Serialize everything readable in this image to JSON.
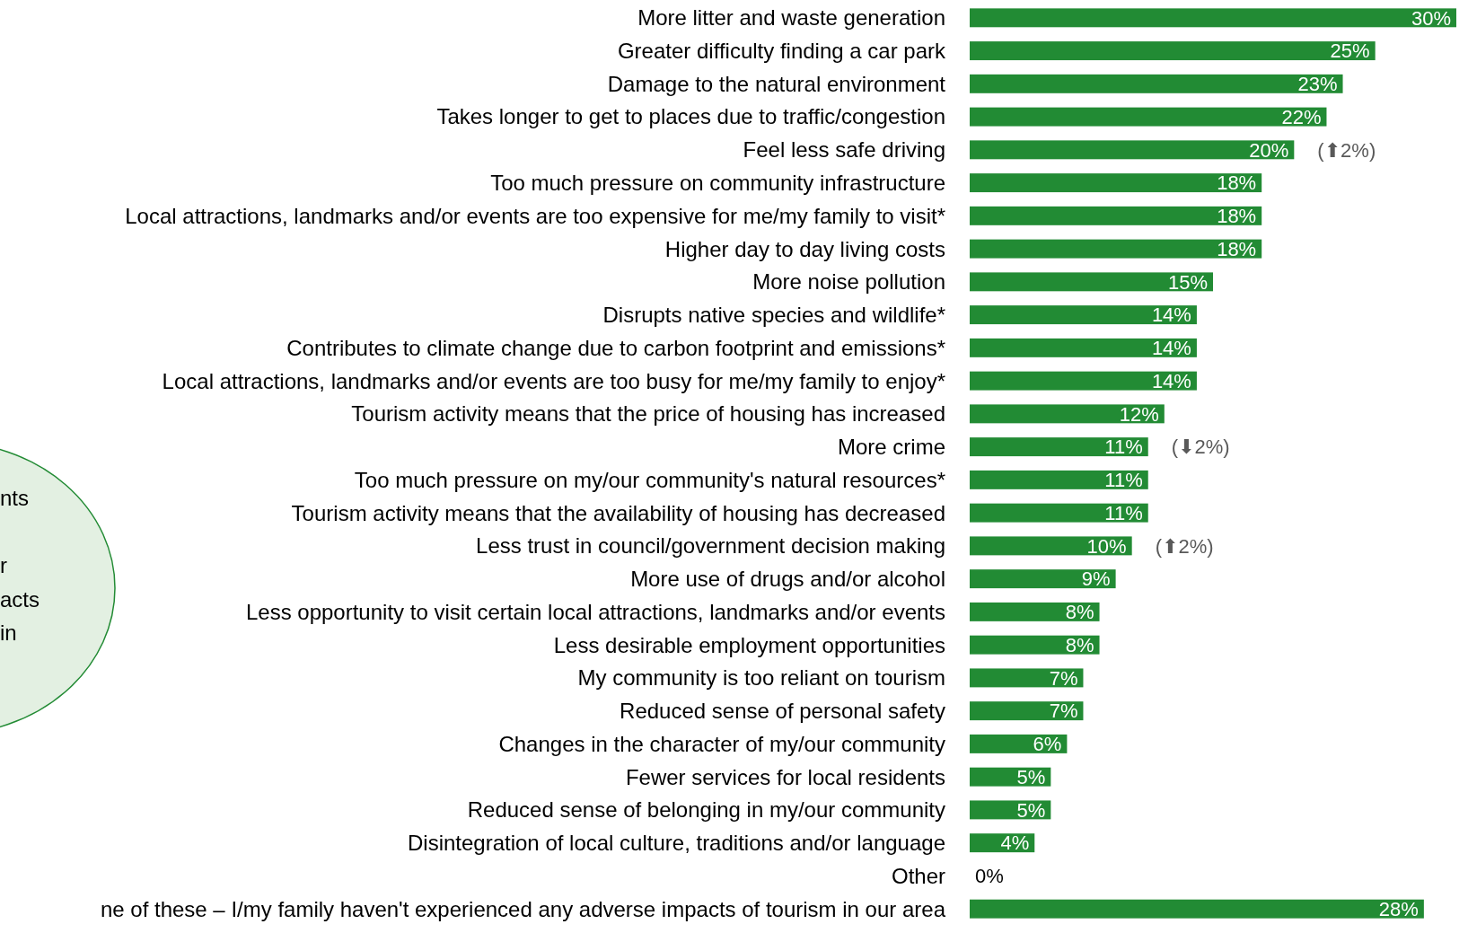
{
  "chart_data": {
    "type": "bar",
    "orientation": "horizontal",
    "color": "#228b34",
    "categories": [
      "More litter and waste generation",
      "Greater difficulty finding a car park",
      "Damage to the natural environment",
      "Takes longer to get to places due to traffic/congestion",
      "Feel less safe driving",
      "Too much pressure on community infrastructure",
      "Local attractions, landmarks and/or events are too expensive for me/my family to visit*",
      "Higher day to day living costs",
      "More noise pollution",
      "Disrupts native species and wildlife*",
      "Contributes to climate change due to carbon footprint and emissions*",
      "Local attractions, landmarks and/or events are too busy for me/my family to enjoy*",
      "Tourism activity means that the price of housing has increased",
      "More crime",
      "Too much pressure on my/our community's natural resources*",
      "Tourism activity means that the availability of housing has decreased",
      "Less trust in council/government decision making",
      "More use of drugs and/or alcohol",
      "Less opportunity to visit certain local attractions, landmarks and/or events",
      "Less desirable employment opportunities",
      "My community is too reliant on tourism",
      "Reduced sense of personal safety",
      "Changes in the character of my/our community",
      "Fewer services for local residents",
      "Reduced sense of belonging in my/our community",
      "Disintegration of local culture, traditions and/or language",
      "Other",
      "ne of these – I/my family haven't experienced any adverse impacts of tourism in our area"
    ],
    "values": [
      30,
      25,
      23,
      22,
      20,
      18,
      18,
      18,
      15,
      14,
      14,
      14,
      12,
      11,
      11,
      11,
      10,
      9,
      8,
      8,
      7,
      7,
      6,
      5,
      5,
      4,
      0,
      28
    ],
    "value_labels": [
      "30%",
      "25%",
      "23%",
      "22%",
      "20%",
      "18%",
      "18%",
      "18%",
      "15%",
      "14%",
      "14%",
      "14%",
      "12%",
      "11%",
      "11%",
      "11%",
      "10%",
      "9%",
      "8%",
      "8%",
      "7%",
      "7%",
      "6%",
      "5%",
      "5%",
      "4%",
      "0%",
      "28%"
    ],
    "annotations": [
      {
        "text": "(⬆2%)",
        "x": 20,
        "y": "Feel less safe driving"
      },
      {
        "text": "(⬇2%)",
        "x": 11,
        "y": "More crime"
      },
      {
        "text": "(⬆2%)",
        "x": 10,
        "y": "Less trust in council/government decision making"
      },
      "nts",
      "r",
      "acts",
      "in"
    ]
  }
}
